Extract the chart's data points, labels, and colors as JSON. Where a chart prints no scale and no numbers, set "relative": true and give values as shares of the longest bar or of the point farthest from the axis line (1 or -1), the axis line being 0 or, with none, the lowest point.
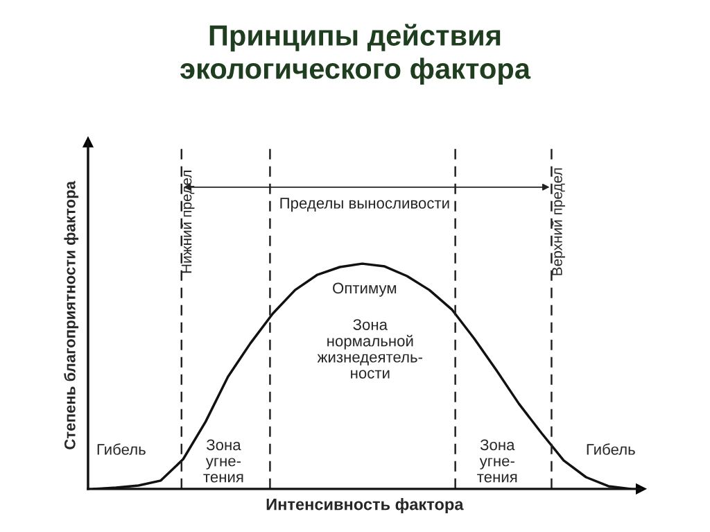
{
  "chart_data": {
    "type": "line",
    "relative": true,
    "title": "Принципы действия\nэкологического фактора",
    "xlabel": "Интенсивность фактора",
    "ylabel": "Степень благоприятности фактора",
    "categories": [
      null,
      null,
      null,
      null,
      null,
      null,
      null,
      null,
      null,
      null,
      null,
      null,
      null,
      null,
      null,
      null,
      null,
      null,
      null,
      null,
      null,
      null,
      null,
      null,
      null
    ],
    "series": [
      {
        "color": "#111111",
        "values": [
          0,
          0.006,
          0.015,
          0.037,
          0.132,
          0.298,
          0.498,
          0.646,
          0.778,
          0.883,
          0.951,
          0.985,
          1.0,
          0.988,
          0.945,
          0.883,
          0.797,
          0.668,
          0.526,
          0.378,
          0.249,
          0.126,
          0.052,
          0.012,
          0
        ]
      }
    ],
    "annotations": [
      "Нижний предел",
      "Верхний предел",
      "Пределы выносливости",
      "Зона\nугне-\nтения",
      "Зона\nнормальной\nжизнедеятель-\nности",
      "Зона\nугне-\nтения",
      "Оптимум",
      "Гибель",
      "Гибель"
    ]
  }
}
